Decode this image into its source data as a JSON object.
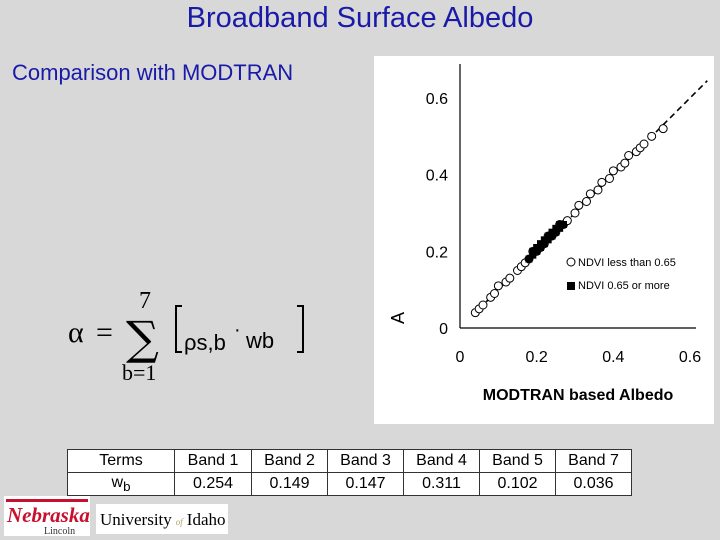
{
  "slide": {
    "title": "Broadband Surface Albedo",
    "subtitle": "Comparison with MODTRAN"
  },
  "formula": {
    "lhs": "α",
    "equals": "=",
    "upper_limit": "7",
    "sigma": "∑",
    "lower_limit": "b=1",
    "term1": "ρs,b",
    "dot": "·",
    "term2": "wb"
  },
  "chart_data": {
    "type": "scatter",
    "xlabel": "MODTRAN based Albedo",
    "ylabel": "A",
    "xlim": [
      0,
      0.6
    ],
    "ylim": [
      0,
      0.6
    ],
    "x_ticks": [
      "0",
      "0.2",
      "0.4",
      "0.6"
    ],
    "y_ticks": [
      "0",
      "0.2",
      "0.4",
      "0.6"
    ],
    "grid": false,
    "legend_position": "inside-right",
    "reference_line": "1:1 dashed line",
    "series": [
      {
        "name": "NDVI less than 0.65",
        "marker": "open-circle",
        "x": [
          0.04,
          0.05,
          0.06,
          0.08,
          0.09,
          0.1,
          0.12,
          0.13,
          0.15,
          0.16,
          0.17,
          0.18,
          0.19,
          0.2,
          0.21,
          0.22,
          0.23,
          0.24,
          0.25,
          0.26,
          0.27,
          0.28,
          0.3,
          0.31,
          0.33,
          0.34,
          0.36,
          0.37,
          0.39,
          0.4,
          0.42,
          0.43,
          0.44,
          0.46,
          0.47,
          0.48,
          0.5,
          0.53
        ],
        "y": [
          0.04,
          0.05,
          0.06,
          0.08,
          0.09,
          0.11,
          0.12,
          0.13,
          0.15,
          0.16,
          0.17,
          0.18,
          0.2,
          0.2,
          0.21,
          0.22,
          0.24,
          0.24,
          0.25,
          0.27,
          0.27,
          0.28,
          0.3,
          0.32,
          0.33,
          0.35,
          0.36,
          0.38,
          0.39,
          0.41,
          0.42,
          0.43,
          0.45,
          0.46,
          0.47,
          0.48,
          0.5,
          0.52
        ]
      },
      {
        "name": "NDVI 0.65 or more",
        "marker": "filled-square",
        "x": [
          0.18,
          0.19,
          0.19,
          0.2,
          0.2,
          0.21,
          0.21,
          0.22,
          0.22,
          0.23,
          0.23,
          0.24,
          0.24,
          0.25,
          0.25,
          0.26,
          0.26,
          0.27
        ],
        "y": [
          0.18,
          0.19,
          0.2,
          0.2,
          0.21,
          0.21,
          0.22,
          0.22,
          0.23,
          0.23,
          0.24,
          0.24,
          0.25,
          0.25,
          0.26,
          0.26,
          0.27,
          0.27
        ]
      }
    ]
  },
  "table": {
    "header": [
      "Terms",
      "Band 1",
      "Band 2",
      "Band 3",
      "Band 4",
      "Band 5",
      "Band 7"
    ],
    "row_label": "wb",
    "values": [
      "0.254",
      "0.149",
      "0.147",
      "0.311",
      "0.102",
      "0.036"
    ]
  },
  "logos": {
    "nebraska": "Nebraska",
    "lincoln": "Lincoln",
    "idaho_university": "University",
    "idaho_of": "of",
    "idaho_name": "Idaho"
  },
  "colors": {
    "title": "#1a1aa8",
    "background": "#d8d8d8",
    "nebraska_red": "#c8102e",
    "idaho_gold": "#b3a369"
  }
}
